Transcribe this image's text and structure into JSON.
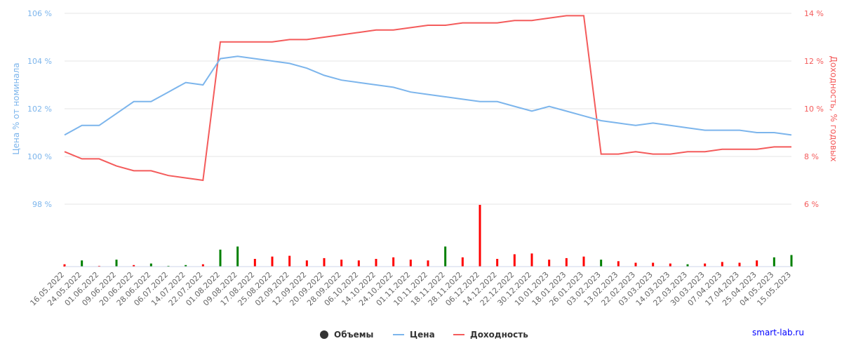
{
  "chart_data": {
    "type": "line",
    "title": "",
    "y_left": {
      "label": "Цена % от номинала",
      "ticks": [
        "106 %",
        "104 %",
        "102 %",
        "100 %",
        "98 %"
      ],
      "tick_values": [
        106,
        104,
        102,
        100,
        98
      ],
      "range": [
        98,
        106
      ]
    },
    "y_right": {
      "label": "Доходность, % годовых",
      "ticks": [
        "14 %",
        "12 %",
        "10 %",
        "8 %",
        "6 %"
      ],
      "tick_values": [
        14,
        12,
        10,
        8,
        6
      ],
      "range": [
        6,
        14
      ]
    },
    "x_ticks": [
      "16.05.2022",
      "24.05.2022",
      "01.06.2022",
      "09.06.2022",
      "20.06.2022",
      "28.06.2022",
      "06.07.2022",
      "14.07.2022",
      "22.07.2022",
      "01.08.2022",
      "09.08.2022",
      "17.08.2022",
      "25.08.2022",
      "02.09.2022",
      "12.09.2022",
      "20.09.2022",
      "28.09.2022",
      "06.10.2022",
      "14.10.2022",
      "24.10.2022",
      "01.11.2022",
      "10.11.2022",
      "18.11.2022",
      "28.11.2022",
      "06.12.2022",
      "14.12.2022",
      "22.12.2022",
      "30.12.2022",
      "10.01.2023",
      "18.01.2023",
      "26.01.2023",
      "03.02.2023",
      "13.02.2023",
      "22.02.2023",
      "03.03.2023",
      "14.03.2023",
      "22.03.2023",
      "30.03.2023",
      "07.04.2023",
      "17.04.2023",
      "25.04.2023",
      "04.05.2023",
      "15.05.2023"
    ],
    "series": [
      {
        "name": "Цена",
        "color": "#7cb5ec",
        "axis": "left",
        "values": [
          100.9,
          101.3,
          101.3,
          101.8,
          102.3,
          102.3,
          102.7,
          103.1,
          103.0,
          104.1,
          104.2,
          104.1,
          104.0,
          103.9,
          103.7,
          103.4,
          103.2,
          103.1,
          103.0,
          102.9,
          102.7,
          102.6,
          102.5,
          102.4,
          102.3,
          102.3,
          102.1,
          101.9,
          102.1,
          101.9,
          101.7,
          101.5,
          101.4,
          101.3,
          101.4,
          101.3,
          101.2,
          101.1,
          101.1,
          101.1,
          101.0,
          101.0,
          100.9
        ]
      },
      {
        "name": "Доходность",
        "color": "#f45b5b",
        "axis": "right",
        "values": [
          8.2,
          7.9,
          7.9,
          7.6,
          7.4,
          7.4,
          7.2,
          7.1,
          7.0,
          12.8,
          12.8,
          12.8,
          12.8,
          12.9,
          12.9,
          13.0,
          13.1,
          13.2,
          13.3,
          13.3,
          13.4,
          13.5,
          13.5,
          13.6,
          13.6,
          13.6,
          13.7,
          13.7,
          13.8,
          13.9,
          13.9,
          8.1,
          8.1,
          8.2,
          8.1,
          8.1,
          8.2,
          8.2,
          8.3,
          8.3,
          8.3,
          8.4,
          8.4
        ]
      }
    ],
    "volume_series": {
      "name": "Объемы",
      "values": [
        3,
        8,
        1,
        9,
        2,
        4,
        1,
        2,
        3,
        22,
        26,
        10,
        13,
        14,
        8,
        11,
        9,
        8,
        10,
        12,
        9,
        8,
        26,
        12,
        80,
        10,
        16,
        17,
        9,
        11,
        13,
        9,
        7,
        5,
        5,
        4,
        3,
        4,
        6,
        5,
        8,
        12,
        15
      ],
      "colors": [
        "#ff0000",
        "#008000",
        "#ff0000",
        "#008000",
        "#ff0000",
        "#008000",
        "#008000",
        "#008000",
        "#ff0000",
        "#008000",
        "#008000",
        "#ff0000",
        "#ff0000",
        "#ff0000",
        "#ff0000",
        "#ff0000",
        "#ff0000",
        "#ff0000",
        "#ff0000",
        "#ff0000",
        "#ff0000",
        "#ff0000",
        "#008000",
        "#ff0000",
        "#ff0000",
        "#ff0000",
        "#ff0000",
        "#ff0000",
        "#ff0000",
        "#ff0000",
        "#ff0000",
        "#008000",
        "#ff0000",
        "#ff0000",
        "#ff0000",
        "#ff0000",
        "#008000",
        "#ff0000",
        "#ff0000",
        "#ff0000",
        "#ff0000",
        "#008000",
        "#008000"
      ]
    },
    "legend": {
      "position": "bottom-center",
      "items": [
        {
          "label": "Объемы",
          "color": "#333333",
          "symbol": "circle"
        },
        {
          "label": "Цена",
          "color": "#7cb5ec",
          "symbol": "line"
        },
        {
          "label": "Доходность",
          "color": "#f45b5b",
          "symbol": "line"
        }
      ]
    },
    "grid": true
  },
  "credit": "smart-lab.ru"
}
